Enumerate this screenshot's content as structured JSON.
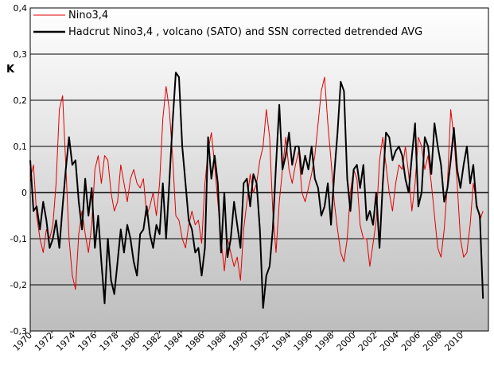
{
  "chart_data": {
    "type": "line",
    "title": "",
    "xlabel": "",
    "ylabel": "K",
    "xlim": [
      1970,
      2012.5
    ],
    "ylim": [
      -0.3,
      0.4
    ],
    "yticks": [
      "-0,3",
      "-0,2",
      "-0,1",
      "0",
      "0,1",
      "0,2",
      "0,3",
      "0,4"
    ],
    "xticks": [
      "1970",
      "1972",
      "1974",
      "1976",
      "1978",
      "1980",
      "1982",
      "1984",
      "1986",
      "1988",
      "1990",
      "1992",
      "1994",
      "1996",
      "1998",
      "2000",
      "2002",
      "2004",
      "2006",
      "2008",
      "2010"
    ],
    "legend": {
      "position": "top-left"
    },
    "series": [
      {
        "name": "Nino3,4",
        "color": "#e00000",
        "x": [
          1970.0,
          1970.3,
          1970.6,
          1970.9,
          1971.2,
          1971.5,
          1971.8,
          1972.1,
          1972.4,
          1972.7,
          1973.0,
          1973.3,
          1973.6,
          1973.9,
          1974.2,
          1974.5,
          1974.8,
          1975.1,
          1975.4,
          1975.7,
          1976.0,
          1976.3,
          1976.6,
          1976.9,
          1977.2,
          1977.5,
          1977.8,
          1978.1,
          1978.4,
          1978.7,
          1979.0,
          1979.3,
          1979.6,
          1979.9,
          1980.2,
          1980.5,
          1980.8,
          1981.1,
          1981.4,
          1981.7,
          1982.0,
          1982.3,
          1982.6,
          1982.9,
          1983.2,
          1983.5,
          1983.8,
          1984.1,
          1984.4,
          1984.7,
          1985.0,
          1985.3,
          1985.6,
          1985.9,
          1986.2,
          1986.5,
          1986.8,
          1987.1,
          1987.4,
          1987.7,
          1988.0,
          1988.3,
          1988.6,
          1988.9,
          1989.2,
          1989.5,
          1989.8,
          1990.1,
          1990.4,
          1990.7,
          1991.0,
          1991.3,
          1991.6,
          1991.9,
          1992.2,
          1992.5,
          1992.8,
          1993.1,
          1993.4,
          1993.7,
          1994.0,
          1994.3,
          1994.6,
          1994.9,
          1995.2,
          1995.5,
          1995.8,
          1996.1,
          1996.4,
          1996.7,
          1997.0,
          1997.3,
          1997.6,
          1997.9,
          1998.2,
          1998.5,
          1998.8,
          1999.1,
          1999.4,
          1999.7,
          2000.0,
          2000.3,
          2000.6,
          2000.9,
          2001.2,
          2001.5,
          2001.8,
          2002.1,
          2002.4,
          2002.7,
          2003.0,
          2003.3,
          2003.6,
          2003.9,
          2004.2,
          2004.5,
          2004.8,
          2005.1,
          2005.4,
          2005.7,
          2006.0,
          2006.3,
          2006.6,
          2006.9,
          2007.2,
          2007.5,
          2007.8,
          2008.1,
          2008.4,
          2008.7,
          2009.0,
          2009.3,
          2009.6,
          2009.9,
          2010.2,
          2010.5,
          2010.8,
          2011.1,
          2011.4,
          2011.7,
          2012.0
        ],
        "values": [
          0.03,
          0.06,
          -0.05,
          -0.1,
          -0.13,
          -0.08,
          -0.1,
          -0.07,
          0.02,
          0.18,
          0.21,
          0.06,
          -0.1,
          -0.18,
          -0.21,
          -0.09,
          -0.04,
          -0.09,
          -0.13,
          -0.07,
          0.05,
          0.08,
          0.02,
          0.08,
          0.07,
          0.0,
          -0.04,
          -0.02,
          0.06,
          0.02,
          -0.02,
          0.03,
          0.05,
          0.02,
          0.01,
          0.03,
          -0.05,
          -0.03,
          0.0,
          -0.05,
          0.02,
          0.16,
          0.23,
          0.18,
          0.08,
          -0.05,
          -0.06,
          -0.1,
          -0.12,
          -0.07,
          -0.04,
          -0.07,
          -0.06,
          -0.11,
          0.02,
          0.09,
          0.13,
          0.06,
          -0.02,
          -0.1,
          -0.17,
          -0.1,
          -0.13,
          -0.16,
          -0.14,
          -0.19,
          -0.08,
          -0.02,
          0.04,
          0.0,
          0.02,
          0.07,
          0.1,
          0.18,
          0.12,
          -0.04,
          -0.13,
          -0.02,
          0.05,
          0.12,
          0.05,
          0.02,
          0.06,
          0.09,
          0.0,
          -0.02,
          0.01,
          0.04,
          0.08,
          0.15,
          0.22,
          0.25,
          0.15,
          0.07,
          -0.02,
          -0.08,
          -0.13,
          -0.15,
          -0.1,
          0.0,
          0.05,
          0.03,
          -0.07,
          -0.1,
          -0.1,
          -0.16,
          -0.11,
          -0.06,
          0.07,
          0.12,
          0.06,
          0.0,
          -0.04,
          0.02,
          0.06,
          0.05,
          0.1,
          0.04,
          -0.04,
          0.02,
          0.12,
          0.1,
          0.05,
          0.08,
          0.02,
          -0.05,
          -0.12,
          -0.14,
          -0.08,
          0.02,
          0.18,
          0.12,
          0.02,
          -0.1,
          -0.14,
          -0.13,
          -0.07,
          0.02,
          -0.02,
          -0.06,
          -0.04
        ],
        "stroke_width": 1
      },
      {
        "name": "Hadcrut Nino3,4  , volcano (SATO) and SSN corrected detrended AVG",
        "color": "#000000",
        "x": [
          1970.0,
          1970.3,
          1970.6,
          1970.9,
          1971.2,
          1971.5,
          1971.8,
          1972.1,
          1972.4,
          1972.7,
          1973.0,
          1973.3,
          1973.6,
          1973.9,
          1974.2,
          1974.5,
          1974.8,
          1975.1,
          1975.4,
          1975.7,
          1976.0,
          1976.3,
          1976.6,
          1976.9,
          1977.2,
          1977.5,
          1977.8,
          1978.1,
          1978.4,
          1978.7,
          1979.0,
          1979.3,
          1979.6,
          1979.9,
          1980.2,
          1980.5,
          1980.8,
          1981.1,
          1981.4,
          1981.7,
          1982.0,
          1982.3,
          1982.6,
          1982.9,
          1983.2,
          1983.5,
          1983.8,
          1984.1,
          1984.4,
          1984.7,
          1985.0,
          1985.3,
          1985.6,
          1985.9,
          1986.2,
          1986.5,
          1986.8,
          1987.1,
          1987.4,
          1987.7,
          1988.0,
          1988.3,
          1988.6,
          1988.9,
          1989.2,
          1989.5,
          1989.8,
          1990.1,
          1990.4,
          1990.7,
          1991.0,
          1991.3,
          1991.6,
          1991.9,
          1992.2,
          1992.5,
          1992.8,
          1993.1,
          1993.4,
          1993.7,
          1994.0,
          1994.3,
          1994.6,
          1994.9,
          1995.2,
          1995.5,
          1995.8,
          1996.1,
          1996.4,
          1996.7,
          1997.0,
          1997.3,
          1997.6,
          1997.9,
          1998.2,
          1998.5,
          1998.8,
          1999.1,
          1999.4,
          1999.7,
          2000.0,
          2000.3,
          2000.6,
          2000.9,
          2001.2,
          2001.5,
          2001.8,
          2002.1,
          2002.4,
          2002.7,
          2003.0,
          2003.3,
          2003.6,
          2003.9,
          2004.2,
          2004.5,
          2004.8,
          2005.1,
          2005.4,
          2005.7,
          2006.0,
          2006.3,
          2006.6,
          2006.9,
          2007.2,
          2007.5,
          2007.8,
          2008.1,
          2008.4,
          2008.7,
          2009.0,
          2009.3,
          2009.6,
          2009.9,
          2010.2,
          2010.5,
          2010.8,
          2011.1,
          2011.4,
          2011.7,
          2012.0
        ],
        "values": [
          0.07,
          -0.04,
          -0.03,
          -0.08,
          -0.02,
          -0.06,
          -0.12,
          -0.1,
          -0.06,
          -0.12,
          -0.03,
          0.05,
          0.12,
          0.06,
          0.07,
          -0.02,
          -0.08,
          0.03,
          -0.05,
          0.01,
          -0.12,
          -0.05,
          -0.15,
          -0.24,
          -0.1,
          -0.19,
          -0.22,
          -0.15,
          -0.08,
          -0.13,
          -0.07,
          -0.1,
          -0.15,
          -0.18,
          -0.09,
          -0.08,
          -0.03,
          -0.09,
          -0.12,
          -0.07,
          -0.09,
          0.02,
          -0.1,
          0.02,
          0.15,
          0.26,
          0.25,
          0.1,
          0.02,
          -0.06,
          -0.08,
          -0.13,
          -0.12,
          -0.18,
          -0.12,
          0.12,
          0.03,
          0.08,
          0.02,
          -0.13,
          0.0,
          -0.14,
          -0.1,
          -0.02,
          -0.07,
          -0.12,
          0.02,
          0.03,
          -0.03,
          0.04,
          0.02,
          -0.08,
          -0.25,
          -0.18,
          -0.16,
          -0.08,
          0.06,
          0.19,
          0.05,
          0.08,
          0.13,
          0.06,
          0.1,
          0.1,
          0.04,
          0.08,
          0.05,
          0.1,
          0.03,
          0.01,
          -0.05,
          -0.03,
          0.02,
          -0.07,
          0.04,
          0.13,
          0.24,
          0.22,
          0.03,
          -0.04,
          0.05,
          0.06,
          0.01,
          0.06,
          -0.06,
          -0.04,
          -0.07,
          0.0,
          -0.12,
          0.02,
          0.13,
          0.12,
          0.07,
          0.09,
          0.1,
          0.08,
          0.03,
          0.0,
          0.08,
          0.15,
          -0.03,
          0.0,
          0.12,
          0.1,
          0.04,
          0.15,
          0.1,
          0.06,
          -0.02,
          0.01,
          0.07,
          0.14,
          0.05,
          0.01,
          0.06,
          0.1,
          0.02,
          0.06,
          -0.03,
          -0.05,
          -0.23
        ],
        "stroke_width": 2
      }
    ]
  }
}
